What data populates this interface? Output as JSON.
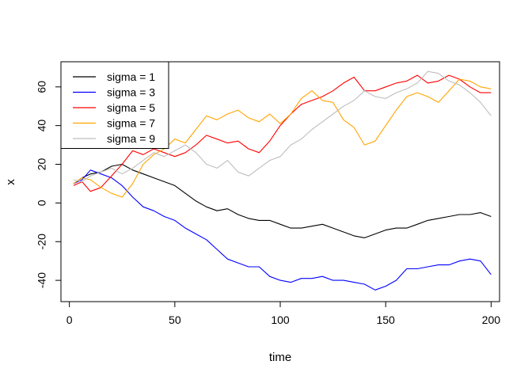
{
  "chart_data": {
    "type": "line",
    "xlabel": "time",
    "ylabel": "x",
    "xlim": [
      -4,
      204
    ],
    "ylim": [
      -51,
      73
    ],
    "x_ticks": [
      0,
      50,
      100,
      150,
      200
    ],
    "y_ticks": [
      -40,
      -20,
      0,
      20,
      40,
      60
    ],
    "grid": false,
    "legend_position": "top-left",
    "series": [
      {
        "name": "sigma = 1",
        "color": "#000000",
        "x": [
          2,
          6,
          10,
          15,
          20,
          25,
          30,
          35,
          40,
          45,
          50,
          55,
          60,
          65,
          70,
          75,
          80,
          85,
          90,
          95,
          100,
          105,
          110,
          115,
          120,
          125,
          130,
          135,
          140,
          145,
          150,
          155,
          160,
          165,
          170,
          175,
          180,
          185,
          190,
          195,
          200
        ],
        "y": [
          10,
          13,
          15,
          16,
          19,
          20,
          17,
          15,
          13,
          11,
          9,
          5,
          1,
          -2,
          -4,
          -3,
          -6,
          -8,
          -9,
          -9,
          -11,
          -13,
          -13,
          -12,
          -11,
          -13,
          -15,
          -17,
          -18,
          -16,
          -14,
          -13,
          -13,
          -11,
          -9,
          -8,
          -7,
          -6,
          -6,
          -5,
          -7
        ]
      },
      {
        "name": "sigma = 3",
        "color": "#0000ff",
        "x": [
          2,
          6,
          10,
          15,
          20,
          25,
          30,
          35,
          40,
          45,
          50,
          55,
          60,
          65,
          70,
          75,
          80,
          85,
          90,
          95,
          100,
          105,
          110,
          115,
          120,
          125,
          130,
          135,
          140,
          145,
          150,
          155,
          160,
          165,
          170,
          175,
          180,
          185,
          190,
          195,
          200
        ],
        "y": [
          10,
          12,
          17,
          15,
          13,
          9,
          3,
          -2,
          -4,
          -7,
          -9,
          -13,
          -16,
          -19,
          -24,
          -29,
          -31,
          -33,
          -33,
          -38,
          -40,
          -41,
          -39,
          -39,
          -38,
          -40,
          -40,
          -41,
          -42,
          -45,
          -43,
          -40,
          -34,
          -34,
          -33,
          -32,
          -32,
          -30,
          -29,
          -30,
          -37
        ]
      },
      {
        "name": "sigma = 5",
        "color": "#ff0000",
        "x": [
          2,
          6,
          10,
          15,
          20,
          25,
          30,
          35,
          40,
          45,
          50,
          55,
          60,
          65,
          70,
          75,
          80,
          85,
          90,
          95,
          100,
          105,
          110,
          115,
          120,
          125,
          130,
          135,
          140,
          145,
          150,
          155,
          160,
          165,
          170,
          175,
          180,
          185,
          190,
          195,
          200
        ],
        "y": [
          9,
          11,
          6,
          8,
          14,
          20,
          27,
          25,
          28,
          26,
          24,
          26,
          30,
          35,
          33,
          31,
          32,
          28,
          26,
          32,
          40,
          46,
          51,
          53,
          55,
          58,
          62,
          65,
          58,
          58,
          60,
          62,
          63,
          66,
          62,
          63,
          66,
          64,
          60,
          57,
          57
        ]
      },
      {
        "name": "sigma = 7",
        "color": "#ffa500",
        "x": [
          2,
          6,
          10,
          15,
          20,
          25,
          30,
          35,
          40,
          45,
          50,
          55,
          60,
          65,
          70,
          75,
          80,
          85,
          90,
          95,
          100,
          105,
          110,
          115,
          120,
          125,
          130,
          135,
          140,
          145,
          150,
          155,
          160,
          165,
          170,
          175,
          180,
          185,
          190,
          195,
          200
        ],
        "y": [
          10,
          13,
          12,
          8,
          5,
          3,
          10,
          20,
          25,
          28,
          33,
          31,
          38,
          45,
          43,
          46,
          48,
          44,
          42,
          46,
          41,
          46,
          54,
          58,
          53,
          52,
          43,
          39,
          30,
          32,
          40,
          48,
          55,
          57,
          55,
          52,
          58,
          64,
          63,
          60,
          59
        ]
      },
      {
        "name": "sigma = 9",
        "color": "#bebebe",
        "x": [
          2,
          6,
          10,
          15,
          20,
          25,
          30,
          35,
          40,
          45,
          50,
          55,
          60,
          65,
          70,
          75,
          80,
          85,
          90,
          95,
          100,
          105,
          110,
          115,
          120,
          125,
          130,
          135,
          140,
          145,
          150,
          155,
          160,
          165,
          170,
          175,
          180,
          185,
          190,
          195,
          200
        ],
        "y": [
          12,
          11,
          14,
          16,
          18,
          15,
          18,
          22,
          26,
          24,
          27,
          30,
          26,
          20,
          18,
          22,
          16,
          14,
          18,
          22,
          24,
          30,
          33,
          38,
          42,
          46,
          50,
          53,
          58,
          55,
          54,
          57,
          59,
          62,
          68,
          67,
          63,
          61,
          57,
          52,
          45
        ]
      }
    ]
  }
}
